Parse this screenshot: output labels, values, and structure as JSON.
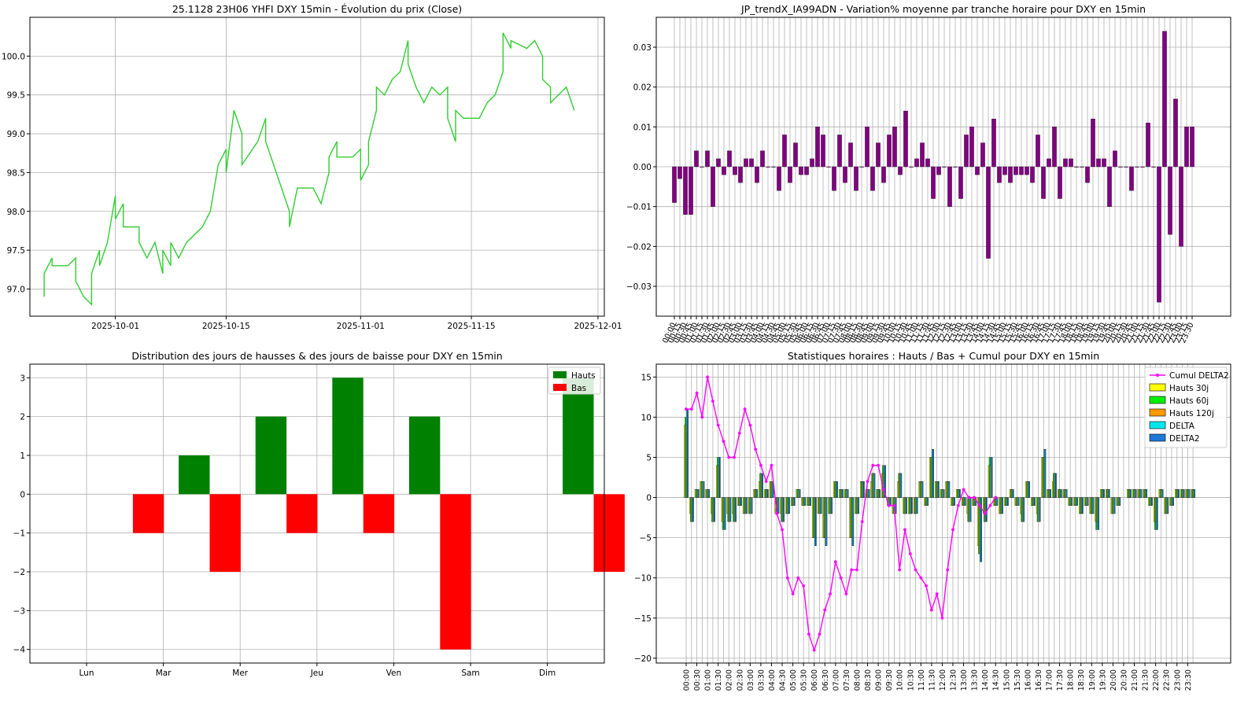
{
  "colors": {
    "price_line": "#33cc33",
    "variation_bar": "#800080",
    "hauts": "#008000",
    "bas": "#ff0000",
    "cumul": "#ff00ff",
    "hauts30": "#ffff00",
    "hauts60": "#00ee00",
    "hauts120": "#ff9900",
    "delta": "#00e5ee",
    "delta2": "#1f78d6",
    "grid": "#b0b0b0"
  },
  "chart_data": [
    {
      "id": "price",
      "type": "line",
      "title": "25.1128 23H06 YHFI DXY 15min - Évolution du prix (Close)",
      "x_ticks": [
        "2025-10-01",
        "2025-10-15",
        "2025-11-01",
        "2025-11-15",
        "2025-12-01"
      ],
      "y_ticks": [
        "97.0",
        "97.5",
        "98.0",
        "98.5",
        "99.0",
        "99.5",
        "100.0"
      ],
      "xlim": [
        "2025-09-22",
        "2025-11-30"
      ],
      "ylim": [
        96.65,
        100.5
      ],
      "grid": true,
      "series": [
        {
          "values": [
            [
              "2025-09-22",
              96.9
            ],
            [
              "2025-09-22",
              97.2
            ],
            [
              "2025-09-23",
              97.4
            ],
            [
              "2025-09-23",
              97.3
            ],
            [
              "2025-09-25",
              97.3
            ],
            [
              "2025-09-26",
              97.4
            ],
            [
              "2025-09-26",
              97.1
            ],
            [
              "2025-09-27",
              96.9
            ],
            [
              "2025-09-28",
              96.8
            ],
            [
              "2025-09-28",
              97.2
            ],
            [
              "2025-09-29",
              97.5
            ],
            [
              "2025-09-29",
              97.3
            ],
            [
              "2025-09-30",
              97.6
            ],
            [
              "2025-10-01",
              98.2
            ],
            [
              "2025-10-01",
              97.9
            ],
            [
              "2025-10-02",
              98.1
            ],
            [
              "2025-10-02",
              97.8
            ],
            [
              "2025-10-04",
              97.8
            ],
            [
              "2025-10-04",
              97.6
            ],
            [
              "2025-10-05",
              97.4
            ],
            [
              "2025-10-06",
              97.6
            ],
            [
              "2025-10-07",
              97.2
            ],
            [
              "2025-10-07",
              97.5
            ],
            [
              "2025-10-08",
              97.3
            ],
            [
              "2025-10-08",
              97.6
            ],
            [
              "2025-10-09",
              97.4
            ],
            [
              "2025-10-10",
              97.6
            ],
            [
              "2025-10-12",
              97.8
            ],
            [
              "2025-10-13",
              98.0
            ],
            [
              "2025-10-14",
              98.6
            ],
            [
              "2025-10-15",
              98.8
            ],
            [
              "2025-10-15",
              98.5
            ],
            [
              "2025-10-16",
              99.3
            ],
            [
              "2025-10-17",
              99.0
            ],
            [
              "2025-10-17",
              98.6
            ],
            [
              "2025-10-19",
              98.9
            ],
            [
              "2025-10-20",
              99.2
            ],
            [
              "2025-10-20",
              98.9
            ],
            [
              "2025-10-21",
              98.6
            ],
            [
              "2025-10-22",
              98.3
            ],
            [
              "2025-10-23",
              98.0
            ],
            [
              "2025-10-23",
              97.8
            ],
            [
              "2025-10-24",
              98.3
            ],
            [
              "2025-10-26",
              98.3
            ],
            [
              "2025-10-27",
              98.1
            ],
            [
              "2025-10-28",
              98.5
            ],
            [
              "2025-10-28",
              98.7
            ],
            [
              "2025-10-29",
              98.9
            ],
            [
              "2025-10-29",
              98.7
            ],
            [
              "2025-10-31",
              98.7
            ],
            [
              "2025-11-01",
              98.8
            ],
            [
              "2025-11-01",
              98.4
            ],
            [
              "2025-11-02",
              98.6
            ],
            [
              "2025-11-02",
              98.9
            ],
            [
              "2025-11-03",
              99.3
            ],
            [
              "2025-11-03",
              99.6
            ],
            [
              "2025-11-04",
              99.5
            ],
            [
              "2025-11-05",
              99.7
            ],
            [
              "2025-11-06",
              99.8
            ],
            [
              "2025-11-07",
              100.2
            ],
            [
              "2025-11-07",
              99.9
            ],
            [
              "2025-11-08",
              99.6
            ],
            [
              "2025-11-09",
              99.4
            ],
            [
              "2025-11-10",
              99.6
            ],
            [
              "2025-11-11",
              99.5
            ],
            [
              "2025-11-12",
              99.6
            ],
            [
              "2025-11-12",
              99.2
            ],
            [
              "2025-11-13",
              98.9
            ],
            [
              "2025-11-13",
              99.3
            ],
            [
              "2025-11-14",
              99.2
            ],
            [
              "2025-11-16",
              99.2
            ],
            [
              "2025-11-17",
              99.4
            ],
            [
              "2025-11-18",
              99.5
            ],
            [
              "2025-11-19",
              99.8
            ],
            [
              "2025-11-19",
              100.3
            ],
            [
              "2025-11-20",
              100.1
            ],
            [
              "2025-11-20",
              100.2
            ],
            [
              "2025-11-22",
              100.1
            ],
            [
              "2025-11-23",
              100.2
            ],
            [
              "2025-11-24",
              100.0
            ],
            [
              "2025-11-24",
              99.7
            ],
            [
              "2025-11-25",
              99.6
            ],
            [
              "2025-11-25",
              99.4
            ],
            [
              "2025-11-27",
              99.6
            ],
            [
              "2025-11-28",
              99.3
            ]
          ]
        }
      ]
    },
    {
      "id": "variation",
      "type": "bar",
      "title": "JP_trendX_IA99ADN - Variation% moyenne par tranche horaire pour DXY en 15min",
      "y_ticks": [
        "−0.03",
        "−0.02",
        "−0.01",
        "0.00",
        "0.01",
        "0.02",
        "0.03"
      ],
      "ylim": [
        -0.0375,
        0.0375
      ],
      "grid": true,
      "values": [
        -0.009,
        -0.003,
        -0.012,
        -0.012,
        0.004,
        0.0,
        0.004,
        -0.01,
        0.002,
        -0.002,
        0.004,
        -0.002,
        -0.004,
        0.002,
        0.002,
        -0.004,
        0.004,
        0.0,
        0.0,
        -0.006,
        0.008,
        -0.004,
        0.006,
        -0.002,
        -0.002,
        0.002,
        0.01,
        0.008,
        0.0,
        -0.006,
        0.008,
        -0.004,
        0.006,
        -0.006,
        0.0,
        0.01,
        -0.006,
        0.006,
        -0.004,
        0.008,
        0.01,
        -0.002,
        0.014,
        0.0,
        0.002,
        0.006,
        0.002,
        -0.008,
        -0.002,
        0.0,
        -0.01,
        0.0,
        -0.008,
        0.008,
        0.01,
        -0.002,
        0.006,
        -0.023,
        0.012,
        -0.004,
        -0.002,
        -0.004,
        -0.002,
        -0.002,
        -0.002,
        -0.004,
        0.008,
        -0.008,
        0.002,
        0.01,
        -0.008,
        0.002,
        0.002,
        0.0,
        0.0,
        -0.004,
        0.012,
        0.002,
        0.002,
        -0.01,
        0.004,
        0.0,
        0.0,
        -0.006,
        0.0,
        0.0,
        0.011,
        0.0,
        -0.034,
        0.034,
        -0.017,
        0.017,
        -0.02,
        0.01,
        0.01
      ]
    },
    {
      "id": "weekday",
      "type": "bar",
      "title": "Distribution des jours de hausses & des jours de baisse pour DXY en 15min",
      "categories": [
        "Lun",
        "Mar",
        "Mer",
        "Jeu",
        "Ven",
        "Sam",
        "Dim"
      ],
      "y_ticks": [
        "−4",
        "−3",
        "−2",
        "−1",
        "0",
        "1",
        "2",
        "3"
      ],
      "ylim": [
        -4.35,
        3.35
      ],
      "legend": "top-right",
      "grid": true,
      "series": [
        {
          "name": "Hauts",
          "values": [
            0,
            1,
            2,
            3,
            2,
            0,
            3
          ]
        },
        {
          "name": "Bas",
          "values": [
            -1,
            -2,
            -1,
            -1,
            -4,
            0,
            -2
          ]
        }
      ]
    },
    {
      "id": "hourly",
      "type": "bar",
      "title": "Statistiques horaires : Hauts / Bas + Cumul pour DXY en 15min",
      "y_ticks": [
        "−20",
        "−15",
        "−10",
        "−5",
        "0",
        "5",
        "10",
        "15"
      ],
      "ylim": [
        -20.6,
        16.6
      ],
      "legend": "top-right",
      "grid": true,
      "legend_labels": [
        "Cumul DELTA2",
        "Hauts 30j",
        "Hauts 60j",
        "Hauts 120j",
        "DELTA",
        "DELTA2"
      ],
      "delta2": [
        11,
        -3,
        1,
        2,
        1,
        -3,
        5,
        -4,
        -3,
        -3,
        -1,
        -2,
        -2,
        1,
        3,
        1,
        2,
        -2,
        -3,
        -2,
        -1,
        1,
        -1,
        -1,
        -6,
        -2,
        -6,
        -2,
        2,
        1,
        1,
        -6,
        -2,
        2,
        1,
        3,
        1,
        4,
        -1,
        -2,
        3,
        -2,
        -2,
        -2,
        2,
        -1,
        6,
        2,
        1,
        2,
        -1,
        1,
        -1,
        -3,
        -1,
        -8,
        -3,
        5,
        -1,
        -2,
        -1,
        1,
        -1,
        -3,
        2,
        -1,
        -3,
        6,
        1,
        3,
        1,
        1,
        -1,
        -1,
        -2,
        -1,
        -2,
        -4,
        1,
        1,
        -2,
        -1,
        0,
        1,
        1,
        1,
        1,
        -1,
        -4,
        1,
        -2,
        -1,
        1,
        1,
        1,
        1
      ],
      "cumul": [
        11,
        11,
        13,
        10,
        15,
        12,
        9,
        7,
        5,
        5,
        8,
        11,
        9,
        6,
        4,
        2,
        4,
        -2,
        -4,
        -10,
        -12,
        -10,
        -11,
        -17,
        -19,
        -17,
        -14,
        -12,
        -8,
        -10,
        -12,
        -9,
        -9,
        -3,
        2,
        4,
        4,
        1,
        -1,
        -1,
        -9,
        -4,
        -7,
        -9,
        -10,
        -11,
        -14,
        -12,
        -15,
        -9,
        -4,
        -1,
        1,
        0,
        0,
        -1,
        -2,
        -1,
        0
      ]
    }
  ]
}
